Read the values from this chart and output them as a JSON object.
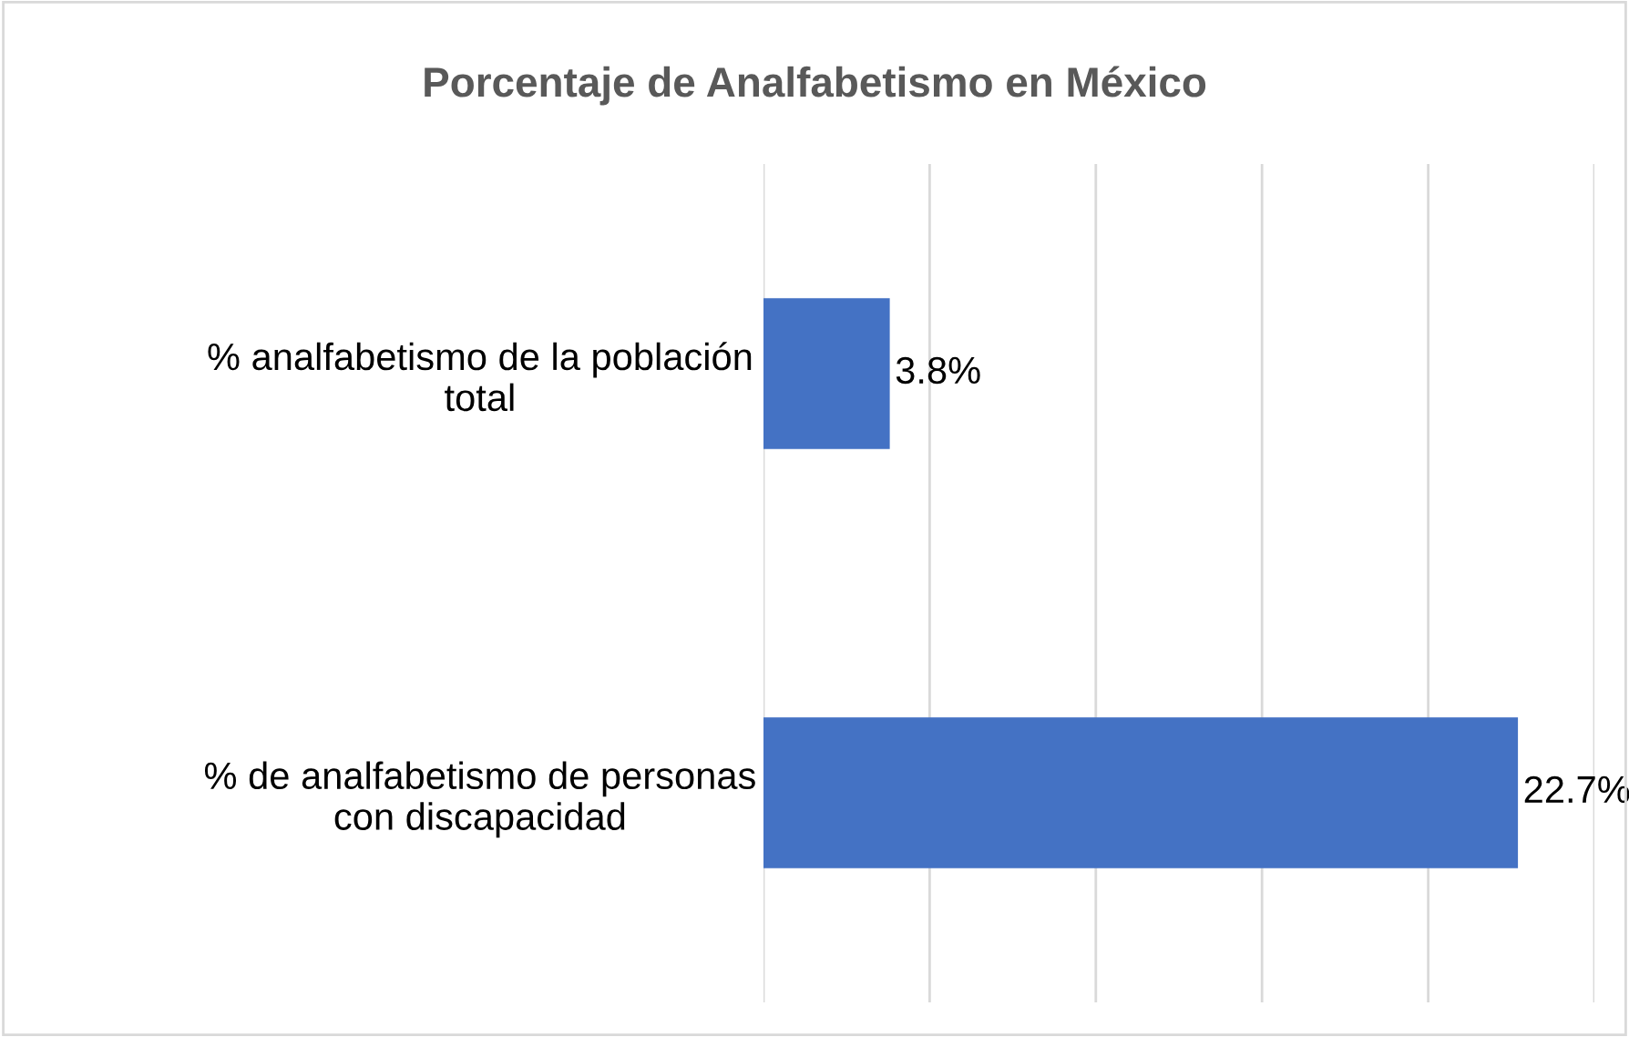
{
  "chart_data": {
    "type": "bar",
    "orientation": "horizontal",
    "title": "Porcentaje de Analfabetismo en México",
    "categories": [
      "% analfabetismo de la población total",
      "% de analfabetismo de personas con discapacidad"
    ],
    "values": [
      3.8,
      22.7
    ],
    "color": "#4472c4",
    "value_labels": [
      "3.8%",
      "22.7%"
    ],
    "xlim": [
      0,
      25
    ],
    "xticks": [
      {
        "value": 0,
        "label": null
      },
      {
        "value": 5,
        "label": null
      },
      {
        "value": 10,
        "label": null
      },
      {
        "value": 15,
        "label": null
      },
      {
        "value": 20,
        "label": null
      },
      {
        "value": 25,
        "label": null
      }
    ],
    "grid": "x"
  }
}
